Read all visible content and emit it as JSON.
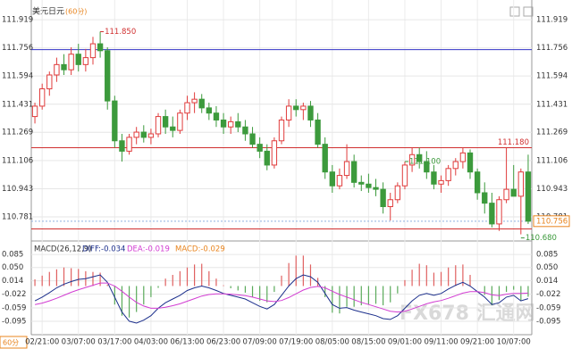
{
  "header": {
    "title": "美元日元",
    "period": "(60分)",
    "period_button": "60分"
  },
  "watermark": "FX678 汇通网",
  "chart_data": [
    {
      "type": "candlestick",
      "categories": [
        null,
        "02/21:00",
        null,
        null,
        null,
        null,
        "03/07:00",
        null,
        null,
        null,
        null,
        "03/17:00",
        null,
        null,
        null,
        null,
        "04/03:00",
        null,
        null,
        null,
        null,
        "06/13:00",
        null,
        null,
        null,
        null,
        "06/23:00",
        null,
        null,
        null,
        null,
        "07/09:00",
        null,
        null,
        null,
        null,
        "07/19:00",
        null,
        null,
        null,
        null,
        "08/05:00",
        null,
        null,
        null,
        null,
        "08/15:00",
        null,
        null,
        null,
        null,
        "09/01:00",
        null,
        null,
        null,
        null,
        "09/11:00",
        null,
        null,
        null,
        null,
        "09/21:00",
        null,
        null,
        null,
        null,
        "10/07:00",
        null,
        null
      ],
      "open": [
        111.36,
        111.42,
        111.52,
        111.6,
        111.66,
        111.63,
        111.72,
        111.66,
        111.7,
        111.78,
        111.74,
        111.45,
        111.22,
        111.16,
        111.24,
        111.27,
        111.24,
        111.26,
        111.36,
        111.3,
        111.28,
        111.38,
        111.44,
        111.46,
        111.41,
        111.38,
        111.34,
        111.3,
        111.33,
        111.3,
        111.26,
        111.2,
        111.16,
        111.08,
        111.22,
        111.34,
        111.42,
        111.4,
        111.42,
        111.34,
        111.2,
        111.04,
        110.96,
        111.02,
        111.1,
        110.98,
        110.97,
        110.95,
        110.94,
        110.84,
        110.88,
        110.96,
        111.08,
        111.14,
        111.1,
        111.04,
        110.97,
        110.99,
        111.06,
        111.1,
        111.15,
        111.04,
        110.92,
        110.86,
        110.74,
        110.88,
        110.94,
        110.9,
        111.04
      ],
      "high": [
        111.44,
        111.55,
        111.62,
        111.7,
        111.72,
        111.76,
        111.78,
        111.75,
        111.82,
        111.85,
        111.76,
        111.48,
        111.26,
        111.26,
        111.3,
        111.31,
        111.29,
        111.38,
        111.4,
        111.36,
        111.4,
        111.48,
        111.5,
        111.49,
        111.44,
        111.42,
        111.38,
        111.36,
        111.38,
        111.34,
        111.3,
        111.24,
        111.2,
        111.24,
        111.36,
        111.46,
        111.46,
        111.44,
        111.45,
        111.38,
        111.24,
        111.08,
        111.06,
        111.2,
        111.14,
        111.02,
        111.03,
        111.0,
        110.98,
        110.92,
        110.98,
        111.1,
        111.18,
        111.18,
        111.16,
        111.08,
        111.02,
        111.08,
        111.12,
        111.18,
        111.17,
        111.06,
        110.98,
        110.92,
        110.9,
        111.18,
        111.08,
        111.06,
        111.14
      ],
      "low": [
        111.32,
        111.4,
        111.48,
        111.56,
        111.6,
        111.6,
        111.62,
        111.62,
        111.66,
        111.7,
        111.4,
        111.18,
        111.1,
        111.14,
        111.2,
        111.21,
        111.2,
        111.24,
        111.26,
        111.24,
        111.26,
        111.34,
        111.38,
        111.38,
        111.34,
        111.3,
        111.26,
        111.26,
        111.27,
        111.22,
        111.18,
        111.12,
        111.05,
        111.06,
        111.2,
        111.3,
        111.36,
        111.34,
        111.3,
        111.18,
        111.0,
        110.92,
        110.94,
        111.0,
        110.95,
        110.93,
        110.92,
        110.9,
        110.8,
        110.76,
        110.86,
        110.94,
        111.04,
        111.06,
        111.0,
        110.94,
        110.92,
        110.96,
        111.02,
        111.06,
        111.0,
        110.88,
        110.8,
        110.72,
        110.7,
        110.86,
        110.9,
        110.68,
        110.74
      ],
      "close": [
        111.42,
        111.52,
        111.6,
        111.66,
        111.63,
        111.72,
        111.66,
        111.7,
        111.78,
        111.74,
        111.45,
        111.22,
        111.16,
        111.24,
        111.27,
        111.24,
        111.26,
        111.36,
        111.3,
        111.28,
        111.38,
        111.44,
        111.46,
        111.41,
        111.38,
        111.34,
        111.3,
        111.33,
        111.3,
        111.26,
        111.2,
        111.16,
        111.08,
        111.22,
        111.34,
        111.42,
        111.4,
        111.42,
        111.34,
        111.2,
        111.04,
        110.96,
        111.02,
        111.1,
        110.98,
        110.97,
        110.95,
        110.94,
        110.84,
        110.88,
        110.96,
        111.08,
        111.14,
        111.1,
        111.04,
        110.97,
        110.99,
        111.06,
        111.1,
        111.15,
        111.04,
        110.92,
        110.86,
        110.74,
        110.88,
        110.94,
        110.9,
        111.04,
        110.756
      ],
      "up_color": "#e03c3c",
      "down_color": "#3c9a3c",
      "ylim": [
        110.652,
        112.007
      ],
      "yticks": [
        111.919,
        111.756,
        111.594,
        111.431,
        111.269,
        111.106,
        110.943,
        110.781
      ],
      "grid": true,
      "price_lines": [
        {
          "value": 111.746,
          "color": "#3535c8"
        },
        {
          "value": 111.18,
          "label": "111.180",
          "color": "#d03030"
        },
        {
          "value": 110.711,
          "color": "#d03030"
        }
      ],
      "last_price": 110.756,
      "annotations": [
        {
          "value": 111.85,
          "label": "111.850",
          "color": "#d03030"
        },
        {
          "value": 111.1,
          "label": "111.100",
          "color": "#3c9a3c"
        },
        {
          "value": 110.68,
          "label": "110.680",
          "color": "#3c9a3c"
        }
      ]
    },
    {
      "type": "macd",
      "legend": [
        "MACD(26,12,9)",
        "DIFF:-0.034",
        "DEA:-0.019",
        "MACD:-0.029"
      ],
      "histogram": {
        "up_color": "#e06060",
        "down_color": "#5aaa5a",
        "values": [
          0.018,
          0.028,
          0.038,
          0.045,
          0.05,
          0.048,
          0.046,
          0.04,
          0.038,
          0.036,
          0.004,
          -0.05,
          -0.08,
          -0.085,
          -0.07,
          -0.05,
          -0.03,
          -0.005,
          0.02,
          0.03,
          0.04,
          0.05,
          0.058,
          0.06,
          0.04,
          0.02,
          0.002,
          -0.006,
          -0.012,
          -0.018,
          -0.03,
          -0.04,
          -0.044,
          -0.016,
          0.028,
          0.062,
          0.082,
          0.082,
          0.058,
          0.022,
          -0.03,
          -0.072,
          -0.074,
          -0.056,
          -0.056,
          -0.052,
          -0.05,
          -0.048,
          -0.052,
          -0.044,
          -0.02,
          0.016,
          0.044,
          0.06,
          0.056,
          0.036,
          0.038,
          0.05,
          0.056,
          0.058,
          0.03,
          0.0,
          -0.024,
          -0.052,
          -0.038,
          -0.016,
          -0.01,
          -0.04,
          -0.029
        ]
      },
      "series": [
        {
          "color": "#1c2f8c",
          "values": [
            -0.04,
            -0.03,
            -0.018,
            -0.005,
            0.005,
            0.012,
            0.018,
            0.02,
            0.025,
            0.03,
            0.01,
            -0.03,
            -0.07,
            -0.095,
            -0.1,
            -0.092,
            -0.08,
            -0.06,
            -0.045,
            -0.035,
            -0.025,
            -0.012,
            -0.005,
            0.0,
            -0.005,
            -0.012,
            -0.02,
            -0.025,
            -0.03,
            -0.035,
            -0.045,
            -0.055,
            -0.062,
            -0.05,
            -0.025,
            0.0,
            0.02,
            0.03,
            0.025,
            0.01,
            -0.02,
            -0.05,
            -0.06,
            -0.058,
            -0.065,
            -0.07,
            -0.075,
            -0.08,
            -0.088,
            -0.09,
            -0.08,
            -0.06,
            -0.04,
            -0.025,
            -0.02,
            -0.025,
            -0.02,
            -0.008,
            0.002,
            0.01,
            0.0,
            -0.015,
            -0.03,
            -0.05,
            -0.045,
            -0.03,
            -0.025,
            -0.04,
            -0.034
          ]
        },
        {
          "color": "#d23cd2",
          "values": [
            -0.05,
            -0.046,
            -0.04,
            -0.033,
            -0.025,
            -0.017,
            -0.01,
            -0.004,
            0.002,
            0.008,
            0.008,
            0.0,
            -0.014,
            -0.03,
            -0.044,
            -0.054,
            -0.06,
            -0.06,
            -0.057,
            -0.053,
            -0.048,
            -0.041,
            -0.034,
            -0.027,
            -0.023,
            -0.021,
            -0.021,
            -0.022,
            -0.024,
            -0.026,
            -0.03,
            -0.035,
            -0.04,
            -0.042,
            -0.039,
            -0.031,
            -0.021,
            -0.011,
            -0.004,
            -0.001,
            -0.005,
            -0.014,
            -0.023,
            -0.03,
            -0.037,
            -0.044,
            -0.05,
            -0.056,
            -0.062,
            -0.068,
            -0.07,
            -0.068,
            -0.062,
            -0.055,
            -0.048,
            -0.043,
            -0.039,
            -0.033,
            -0.026,
            -0.019,
            -0.015,
            -0.015,
            -0.018,
            -0.024,
            -0.026,
            -0.022,
            -0.02,
            -0.02,
            -0.019
          ]
        }
      ],
      "ylim": [
        -0.124,
        0.107
      ],
      "yticks": [
        0.085,
        {
          "value": 0.05,
          "label": "0.050"
        },
        0.014,
        -0.022,
        -0.059,
        -0.095
      ]
    }
  ]
}
